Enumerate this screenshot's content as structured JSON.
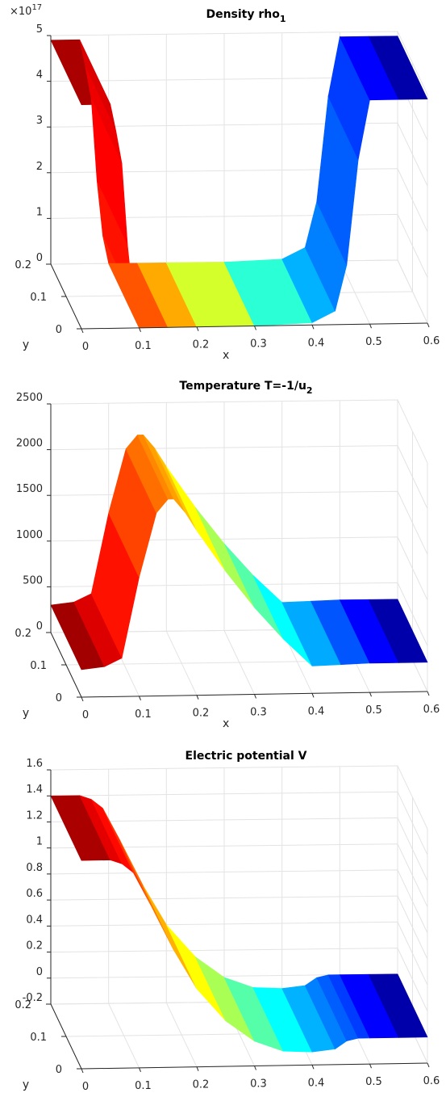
{
  "chart_data": [
    {
      "type": "surface",
      "title_main": "Density rho",
      "title_sub": "1",
      "xlabel": "x",
      "ylabel": "y",
      "exponent_base": "×10",
      "exponent_power": "17",
      "xlim": [
        0,
        0.6
      ],
      "ylim": [
        0,
        0.2
      ],
      "zlim": [
        0,
        5
      ],
      "x_ticks": [
        "0",
        "0.1",
        "0.2",
        "0.3",
        "0.4",
        "0.5",
        "0.6"
      ],
      "y_ticks": [
        "0",
        "0.1",
        "0.2"
      ],
      "z_ticks": [
        "0",
        "1",
        "2",
        "3",
        "4",
        "5"
      ],
      "x": [
        0.0,
        0.05,
        0.06,
        0.07,
        0.08,
        0.09,
        0.1,
        0.15,
        0.2,
        0.3,
        0.4,
        0.44,
        0.46,
        0.48,
        0.5,
        0.55,
        0.6
      ],
      "z": [
        4.9,
        4.9,
        4.3,
        3.6,
        1.8,
        0.6,
        0.0,
        0.0,
        0.0,
        0.0,
        0.05,
        0.3,
        1.3,
        3.6,
        4.9,
        4.9,
        4.9
      ],
      "colormap": "jet",
      "clim": [
        0,
        0.6
      ]
    },
    {
      "type": "surface",
      "title_main": "Temperature T=-1/u",
      "title_sub": "2",
      "xlabel": "x",
      "ylabel": "y",
      "xlim": [
        0,
        0.6
      ],
      "ylim": [
        0,
        0.2
      ],
      "zlim": [
        0,
        2500
      ],
      "x_ticks": [
        "0",
        "0.1",
        "0.2",
        "0.3",
        "0.4",
        "0.5",
        "0.6"
      ],
      "y_ticks": [
        "0",
        "0.1",
        "0.2"
      ],
      "z_ticks": [
        "0",
        "500",
        "1000",
        "1500",
        "2000",
        "2500"
      ],
      "x": [
        0.0,
        0.04,
        0.07,
        0.1,
        0.13,
        0.15,
        0.16,
        0.18,
        0.2,
        0.25,
        0.3,
        0.35,
        0.4,
        0.45,
        0.5,
        0.55,
        0.6
      ],
      "z": [
        300,
        330,
        420,
        1300,
        2000,
        2150,
        2150,
        2000,
        1800,
        1350,
        950,
        600,
        300,
        310,
        320,
        320,
        320
      ],
      "colormap": "jet",
      "clim": [
        0,
        0.6
      ]
    },
    {
      "type": "surface",
      "title_main": "Electric potential V",
      "title_sub": "",
      "xlabel": "",
      "ylabel": "y",
      "xlim": [
        0,
        0.6
      ],
      "ylim": [
        0,
        0.2
      ],
      "zlim": [
        -0.2,
        1.6
      ],
      "x_ticks": [
        "0",
        "0.1",
        "0.2",
        "0.3",
        "0.4",
        "0.5",
        "0.6"
      ],
      "y_ticks": [
        "0",
        "0.1",
        "0.2"
      ],
      "z_ticks": [
        "-0.2",
        "0",
        "0.2",
        "0.4",
        "0.6",
        "0.8",
        "1",
        "1.2",
        "1.4",
        "1.6"
      ],
      "x": [
        0.0,
        0.05,
        0.07,
        0.09,
        0.12,
        0.16,
        0.2,
        0.25,
        0.3,
        0.35,
        0.4,
        0.44,
        0.46,
        0.48,
        0.5,
        0.55,
        0.6
      ],
      "z": [
        1.4,
        1.4,
        1.37,
        1.3,
        1.05,
        0.7,
        0.4,
        0.15,
        -0.01,
        -0.09,
        -0.1,
        -0.08,
        -0.02,
        0.0,
        0.0,
        0.0,
        0.0
      ],
      "colormap": "jet",
      "clim": [
        0,
        0.6
      ]
    }
  ]
}
